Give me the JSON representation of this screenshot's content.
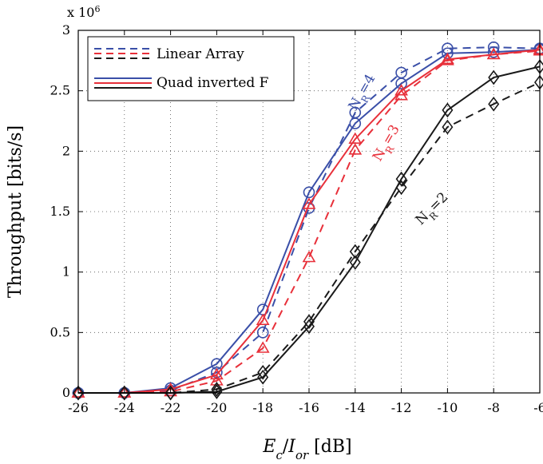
{
  "chart_data": {
    "type": "line",
    "xlabel": "E_c/I_or [dB]",
    "ylabel": "Throughput [bits/s]",
    "y_exponent_label": "x 10^6",
    "xlim": [
      -26,
      -6
    ],
    "ylim": [
      0,
      3
    ],
    "xticks": [
      -26,
      -24,
      -22,
      -20,
      -18,
      -16,
      -14,
      -12,
      -10,
      -8,
      -6
    ],
    "yticks": [
      0,
      0.5,
      1,
      1.5,
      2,
      2.5,
      3
    ],
    "grid": true,
    "legend_position": "top-left",
    "legend": [
      {
        "label": "Linear Array",
        "style": "dashed"
      },
      {
        "label": "Quad inverted F",
        "style": "solid"
      }
    ],
    "colors": {
      "NR4": "#3a4fa8",
      "NR3": "#e8303a",
      "NR2": "#1a1a1a"
    },
    "series": [
      {
        "group": "NR4",
        "style": "dashed",
        "marker": "circle",
        "x": [
          -26,
          -24,
          -22,
          -20,
          -18,
          -16,
          -14,
          -12,
          -10,
          -8,
          -6
        ],
        "y": [
          0,
          0,
          0.02,
          0.17,
          0.5,
          1.53,
          2.32,
          2.65,
          2.85,
          2.86,
          2.85
        ]
      },
      {
        "group": "NR4",
        "style": "solid",
        "marker": "circle",
        "x": [
          -26,
          -24,
          -22,
          -20,
          -18,
          -16,
          -14,
          -12,
          -10,
          -8,
          -6
        ],
        "y": [
          0,
          0,
          0.04,
          0.24,
          0.69,
          1.66,
          2.23,
          2.56,
          2.81,
          2.82,
          2.84
        ]
      },
      {
        "group": "NR3",
        "style": "dashed",
        "marker": "triangle",
        "x": [
          -26,
          -24,
          -22,
          -20,
          -18,
          -16,
          -14,
          -12,
          -10,
          -8,
          -6
        ],
        "y": [
          0,
          0,
          0.01,
          0.1,
          0.37,
          1.12,
          2.01,
          2.46,
          2.75,
          2.8,
          2.83
        ]
      },
      {
        "group": "NR3",
        "style": "solid",
        "marker": "triangle",
        "x": [
          -26,
          -24,
          -22,
          -20,
          -18,
          -16,
          -14,
          -12,
          -10,
          -8,
          -6
        ],
        "y": [
          0,
          0,
          0.03,
          0.15,
          0.6,
          1.56,
          2.1,
          2.5,
          2.76,
          2.8,
          2.84
        ]
      },
      {
        "group": "NR2",
        "style": "dashed",
        "marker": "diamond",
        "x": [
          -26,
          -24,
          -22,
          -20,
          -18,
          -16,
          -14,
          -12,
          -10,
          -8,
          -6
        ],
        "y": [
          0,
          0,
          0,
          0.03,
          0.17,
          0.59,
          1.17,
          1.7,
          2.2,
          2.39,
          2.57
        ]
      },
      {
        "group": "NR2",
        "style": "solid",
        "marker": "diamond",
        "x": [
          -26,
          -24,
          -22,
          -20,
          -18,
          -16,
          -14,
          -12,
          -10,
          -8,
          -6
        ],
        "y": [
          0,
          0,
          0,
          0.01,
          0.13,
          0.55,
          1.08,
          1.77,
          2.34,
          2.61,
          2.7
        ]
      }
    ],
    "annotations": [
      {
        "text": "NR=4",
        "group": "NR4",
        "x": -13.55,
        "y": 2.47
      },
      {
        "text": "NR=3",
        "group": "NR3",
        "x": -12.5,
        "y": 2.05
      },
      {
        "text": "NR=2",
        "group": "NR2",
        "x": -10.55,
        "y": 1.5
      }
    ]
  }
}
